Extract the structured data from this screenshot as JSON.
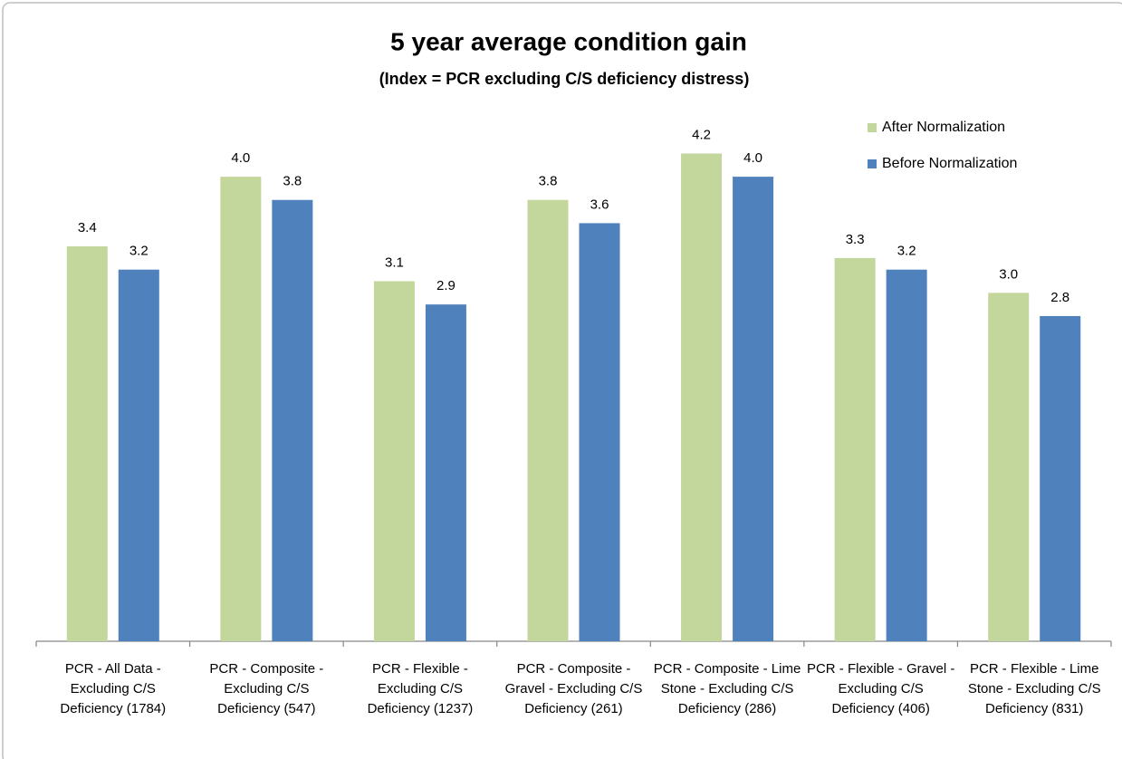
{
  "chart_data": {
    "type": "bar",
    "title": "5 year average condition gain",
    "subtitle": "(Index = PCR excluding C/S deficiency distress)",
    "categories": [
      "PCR - All Data - Excluding C/S Deficiency (1784)",
      "PCR - Composite - Excluding C/S Deficiency (547)",
      "PCR - Flexible - Excluding C/S Deficiency (1237)",
      "PCR - Composite - Gravel - Excluding C/S Deficiency (261)",
      "PCR - Composite - Lime Stone - Excluding C/S Deficiency (286)",
      "PCR - Flexible - Gravel - Excluding C/S Deficiency (406)",
      "PCR - Flexible - Lime Stone - Excluding C/S Deficiency (831)"
    ],
    "series": [
      {
        "name": "After Normalization",
        "color": "#c3d69b",
        "values": [
          3.4,
          4.0,
          3.1,
          3.8,
          4.2,
          3.3,
          3.0
        ],
        "value_labels": [
          "3.4",
          "4.0",
          "3.1",
          "3.8",
          "4.2",
          "3.3",
          "3.0"
        ]
      },
      {
        "name": "Before Normalization",
        "color": "#4f81bd",
        "values": [
          3.2,
          3.8,
          2.9,
          3.6,
          4.0,
          3.2,
          2.8
        ],
        "value_labels": [
          "3.2",
          "3.8",
          "2.9",
          "3.6",
          "4.0",
          "3.2",
          "2.8"
        ]
      }
    ],
    "ylim": [
      0,
      4.5
    ],
    "legend": "top-right"
  }
}
